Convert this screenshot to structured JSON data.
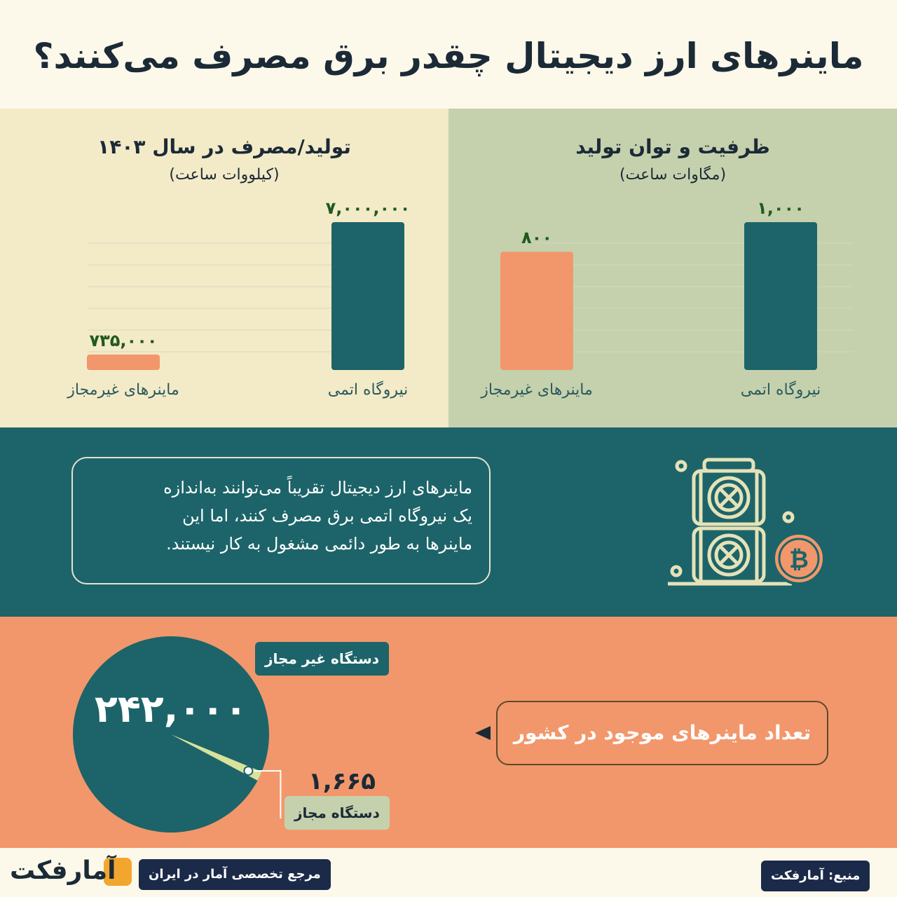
{
  "title": "ماینرهای ارز دیجیتال چقدر برق مصرف می‌کنند؟",
  "chart_data": [
    {
      "type": "bar",
      "title": "تولید/مصرف در سال ۱۴۰۳",
      "subtitle": "(کیلووات ساعت)",
      "categories": [
        "نیروگاه اتمی",
        "ماینرهای غیرمجاز"
      ],
      "values": [
        7000000,
        735000
      ],
      "value_labels": [
        "۷,۰۰۰,۰۰۰",
        "۷۳۵,۰۰۰"
      ],
      "ylim": [
        0,
        7000000
      ],
      "grid": true,
      "colors": [
        "#1c6469",
        "#f2976b"
      ]
    },
    {
      "type": "bar",
      "title": "ظرفیت و توان تولید",
      "subtitle": "(مگاوات ساعت)",
      "categories": [
        "نیروگاه اتمی",
        "ماینرهای غیرمجاز"
      ],
      "values": [
        1000,
        800
      ],
      "value_labels": [
        "۱,۰۰۰",
        "۸۰۰"
      ],
      "ylim": [
        0,
        1000
      ],
      "grid": true,
      "colors": [
        "#1c6469",
        "#f2976b"
      ]
    },
    {
      "type": "pie",
      "categories": [
        "دستگاه غیر مجاز",
        "دستگاه مجاز"
      ],
      "values": [
        242000,
        1665
      ],
      "value_labels": [
        "۲۴۲,۰۰۰",
        "۱,۶۶۵"
      ],
      "colors": [
        "#1c6469",
        "#d8e29a"
      ]
    }
  ],
  "note": {
    "lines": [
      "ماینرهای ارز دیجیتال تقریباً  می‌توانند به‌اندازه",
      "یک نیروگاه اتمی برق مصرف کنند، اما این",
      "ماینرها به طور دائمی مشغول به کار نیستند."
    ]
  },
  "callout": "تعداد ماینرهای موجود در کشور",
  "footer": {
    "source": "منبع: آمارفکت",
    "brand_tagline": "مرجع تخصصی آمار در ایران",
    "logo": "آمارفکت"
  },
  "icons": {
    "miner": "bitcoin-miner-icon",
    "coin": "bitcoin-coin-icon"
  }
}
